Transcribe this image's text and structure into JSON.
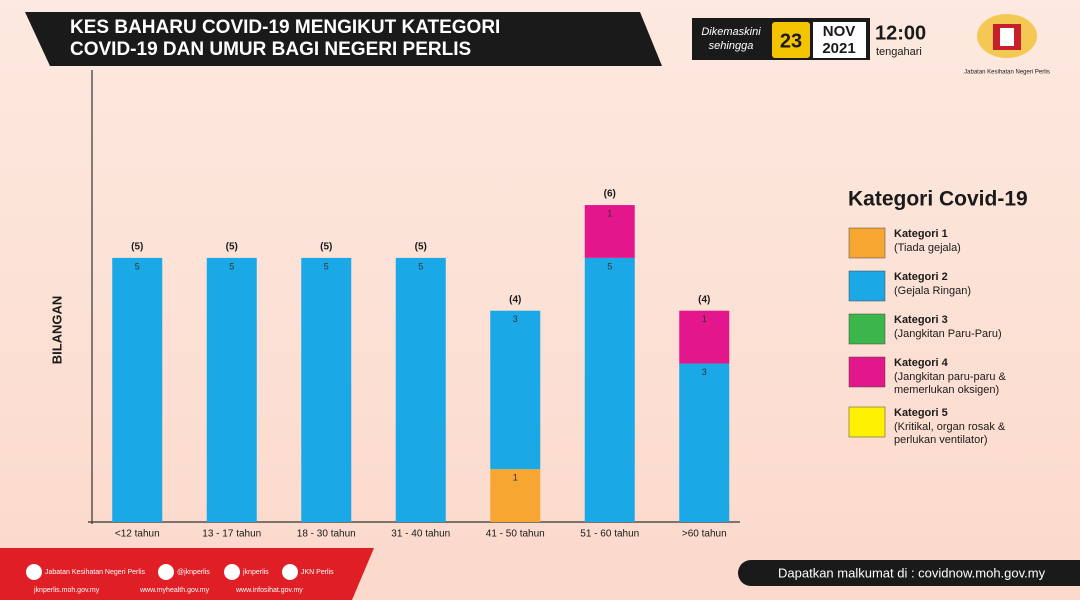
{
  "header": {
    "title_lines": [
      "KES BAHARU COVID-19 MENGIKUT KATEGORI",
      "COVID-19 DAN UMUR BAGI NEGERI PERLIS"
    ],
    "updated_label_lines": [
      "Dikemaskini",
      "sehingga"
    ],
    "day": "23",
    "month": "NOV",
    "year": "2021",
    "time": "12:00",
    "time_note": "tengahari",
    "logo_caption": "Jabatan Kesihatan Negeri Perlis"
  },
  "chart_data": {
    "type": "stacked_bar",
    "ylabel": "BILANGAN",
    "categories": [
      "<12 tahun",
      "13 - 17 tahun",
      "18 - 30 tahun",
      "31 - 40 tahun",
      "41 - 50 tahun",
      "51 - 60 tahun",
      ">60 tahun"
    ],
    "series": [
      {
        "name": "Kategori 1",
        "description_lines": [
          "(Tiada gejala)"
        ],
        "color": "#f7a631",
        "values": [
          null,
          null,
          null,
          null,
          1,
          null,
          null
        ]
      },
      {
        "name": "Kategori 2",
        "description_lines": [
          "(Gejala Ringan)"
        ],
        "color": "#1ba8e6",
        "values": [
          5,
          5,
          5,
          5,
          3,
          5,
          3
        ]
      },
      {
        "name": "Kategori 3",
        "description_lines": [
          "(Jangkitan Paru-Paru)"
        ],
        "color": "#3cb54a",
        "values": [
          null,
          null,
          null,
          null,
          null,
          null,
          null
        ]
      },
      {
        "name": "Kategori 4",
        "description_lines": [
          "(Jangkitan paru-paru &",
          "memerlukan oksigen)"
        ],
        "color": "#e4168c",
        "values": [
          null,
          null,
          null,
          null,
          null,
          1,
          1
        ]
      },
      {
        "name": "Kategori 5",
        "description_lines": [
          "(Kritikal, organ rosak &",
          "perlukan ventilator)"
        ],
        "color": "#fff200",
        "values": [
          null,
          null,
          null,
          null,
          null,
          null,
          null
        ]
      }
    ],
    "total_labels": [
      "(5)",
      "(5)",
      "(5)",
      "(5)",
      "(4)",
      "(6)",
      "(4)"
    ],
    "legend_title": "Kategori Covid-19",
    "ylim": [
      0,
      8.5
    ]
  },
  "footer": {
    "social": [
      "Jabatan Kesihatan Negeri Perlis",
      "@jknperlis",
      "jknperlis",
      "JKN Perlis"
    ],
    "websites": [
      "jknperlis.moh.gov.my",
      "www.myhealth.gov.my",
      "www.infosihat.gov.my"
    ],
    "info": "Dapatkan malkumat di : covidnow.moh.gov.my"
  }
}
